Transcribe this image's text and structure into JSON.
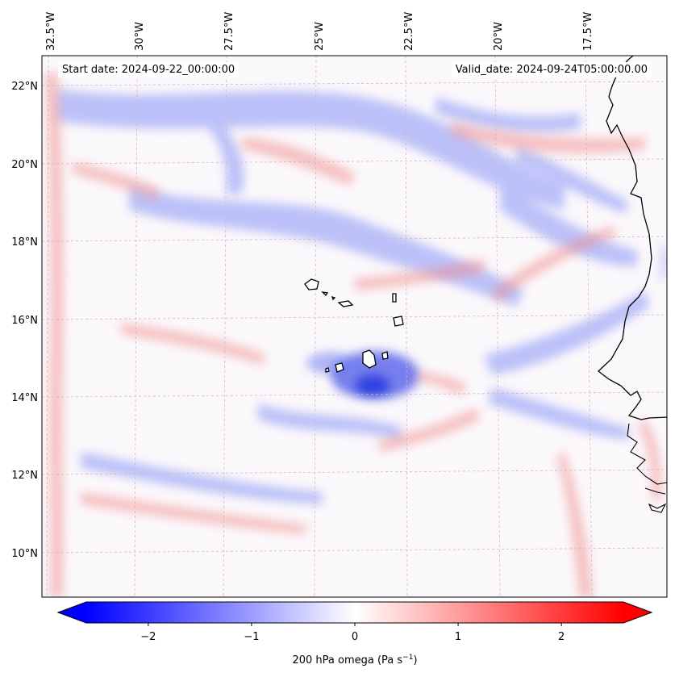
{
  "map": {
    "start_date": "Start date: 2024-09-22_00:00:00",
    "valid_date": "Valid_date: 2024-09-24T05:00:00.00",
    "lon_labels": [
      "32.5°W",
      "30°W",
      "27.5°W",
      "25°W",
      "22.5°W",
      "20°W",
      "17.5°W"
    ],
    "lat_labels": [
      "22°N",
      "20°N",
      "18°N",
      "16°N",
      "14°N",
      "12°N",
      "10°N"
    ],
    "coastline_color": "#000000",
    "gridline_color": "#d0b8b8"
  },
  "colorbar": {
    "ticks": [
      "−2",
      "−1",
      "0",
      "1",
      "2"
    ],
    "tick_values": [
      -2,
      -1,
      0,
      1,
      2
    ],
    "range": [
      -2.6,
      2.6
    ],
    "label_main": "200 hPa omega (Pa s",
    "label_sup": "−1",
    "label_close": ")",
    "color_min": "#0000ff",
    "color_mid": "#ffffff",
    "color_max": "#ff0000"
  }
}
